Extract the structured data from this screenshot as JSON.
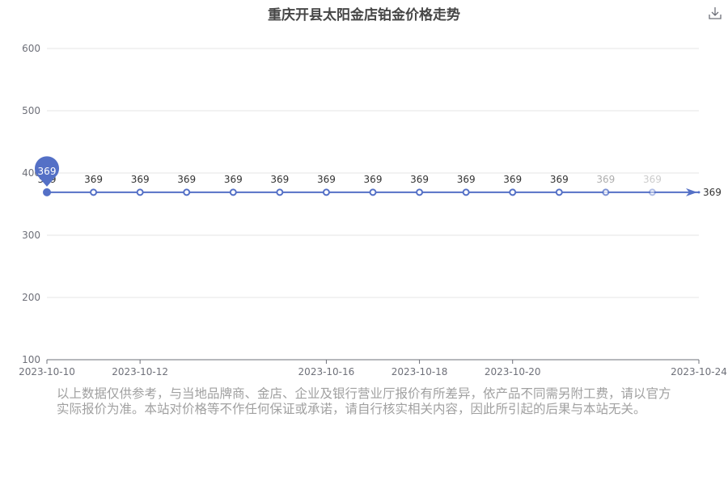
{
  "chart_data": {
    "type": "line",
    "title": "重庆开县太阳金店铂金价格走势",
    "x": [
      "2023-10-10",
      "2023-10-11",
      "2023-10-12",
      "2023-10-13",
      "2023-10-14",
      "2023-10-15",
      "2023-10-16",
      "2023-10-17",
      "2023-10-18",
      "2023-10-19",
      "2023-10-20",
      "2023-10-21",
      "2023-10-22",
      "2023-10-23",
      "2023-10-24"
    ],
    "x_tick_labels": [
      "2023-10-10",
      "2023-10-12",
      "2023-10-16",
      "2023-10-18",
      "2023-10-20",
      "2023-10-24"
    ],
    "series": [
      {
        "x": [
          "2023-10-10",
          "2023-10-11",
          "2023-10-12",
          "2023-10-13",
          "2023-10-14",
          "2023-10-15",
          "2023-10-16",
          "2023-10-17",
          "2023-10-18",
          "2023-10-19",
          "2023-10-20",
          "2023-10-21",
          "2023-10-22",
          "2023-10-23",
          "2023-10-24"
        ],
        "values": [
          369,
          369,
          369,
          369,
          369,
          369,
          369,
          369,
          369,
          369,
          369,
          369,
          369,
          369,
          369
        ]
      }
    ],
    "y_ticks": [
      100,
      200,
      300,
      400,
      500,
      600
    ],
    "ylim": [
      100,
      600
    ],
    "xlabel": "",
    "ylabel": "",
    "highlight": {
      "x": "2023-10-10",
      "value": 369
    },
    "end_label": "369",
    "grid": true,
    "legend": "none",
    "colors": {
      "line": "#5470c6",
      "grid": "#e6e6e6",
      "axis": "#6e7079",
      "label": "#333333"
    }
  },
  "download_icon": "download-icon",
  "disclaimer": "以上数据仅供参考，与当地品牌商、金店、企业及银行营业厅报价有所差异，依产品不同需另附工费，请以官方实际报价为准。本站对价格等不作任何保证或承诺，请自行核实相关内容，因此所引起的后果与本站无关。"
}
